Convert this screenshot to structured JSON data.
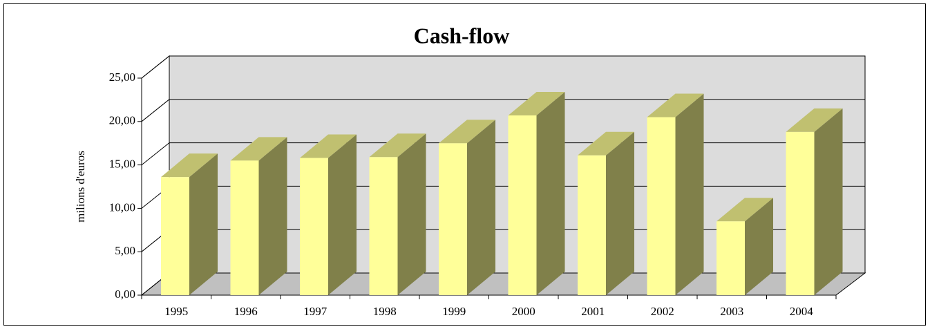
{
  "chart_data": {
    "type": "bar3d",
    "title": "Cash-flow",
    "y_label": "milions d'euros",
    "categories": [
      "1995",
      "1996",
      "1997",
      "1998",
      "1999",
      "2000",
      "2001",
      "2002",
      "2003",
      "2004"
    ],
    "values": [
      13.6,
      15.5,
      15.8,
      15.9,
      17.5,
      20.7,
      16.1,
      20.5,
      8.5,
      18.8
    ],
    "color": "#ffff99",
    "ylim": [
      0,
      25
    ],
    "yticks": [
      {
        "value": 0,
        "label": "0,00"
      },
      {
        "value": 5,
        "label": "5,00"
      },
      {
        "value": 10,
        "label": "10,00"
      },
      {
        "value": 15,
        "label": "15,00"
      },
      {
        "value": 20,
        "label": "20,00"
      },
      {
        "value": 25,
        "label": "25,00"
      }
    ],
    "grid": true
  }
}
